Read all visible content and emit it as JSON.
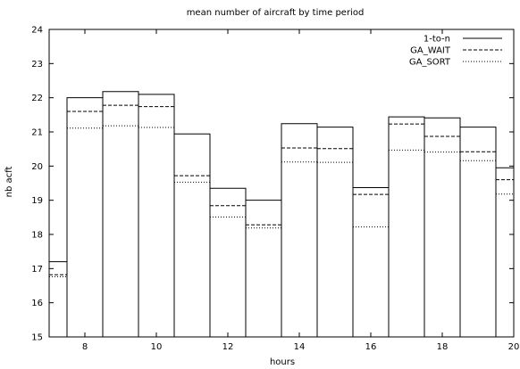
{
  "chart_data": {
    "type": "line",
    "step": true,
    "title": "mean number of aircraft by time period",
    "xlabel": "hours",
    "ylabel": "nb acft",
    "xlim": [
      7,
      20
    ],
    "ylim": [
      15,
      24
    ],
    "xticks": [
      8,
      10,
      12,
      14,
      16,
      18,
      20
    ],
    "yticks": [
      15,
      16,
      17,
      18,
      19,
      20,
      21,
      22,
      23,
      24
    ],
    "grid": false,
    "legend": "top-right",
    "period_starts": [
      7.0,
      7.5,
      8.5,
      9.5,
      10.5,
      11.5,
      12.5,
      13.5,
      14.5,
      15.5,
      16.5,
      17.5,
      18.5,
      19.5
    ],
    "period_ends": [
      7.5,
      8.5,
      9.5,
      10.5,
      11.5,
      12.5,
      13.5,
      14.5,
      15.5,
      16.5,
      17.5,
      18.5,
      19.5,
      20.0
    ],
    "series": [
      {
        "name": "1-to-n",
        "style": "solid",
        "values": [
          17.2,
          22.0,
          22.18,
          22.1,
          20.94,
          19.35,
          19.0,
          21.24,
          21.14,
          19.37,
          21.44,
          21.41,
          21.14,
          19.95
        ]
      },
      {
        "name": "GA_WAIT",
        "style": "dashed",
        "values": [
          16.82,
          21.6,
          21.78,
          21.74,
          19.72,
          18.84,
          18.28,
          20.53,
          20.51,
          19.17,
          21.23,
          20.87,
          20.42,
          19.6
        ]
      },
      {
        "name": "GA_SORT",
        "style": "dotted",
        "values": [
          16.76,
          21.11,
          21.18,
          21.13,
          19.53,
          18.51,
          18.19,
          20.12,
          20.11,
          18.22,
          20.47,
          20.41,
          20.16,
          19.18
        ]
      }
    ]
  }
}
